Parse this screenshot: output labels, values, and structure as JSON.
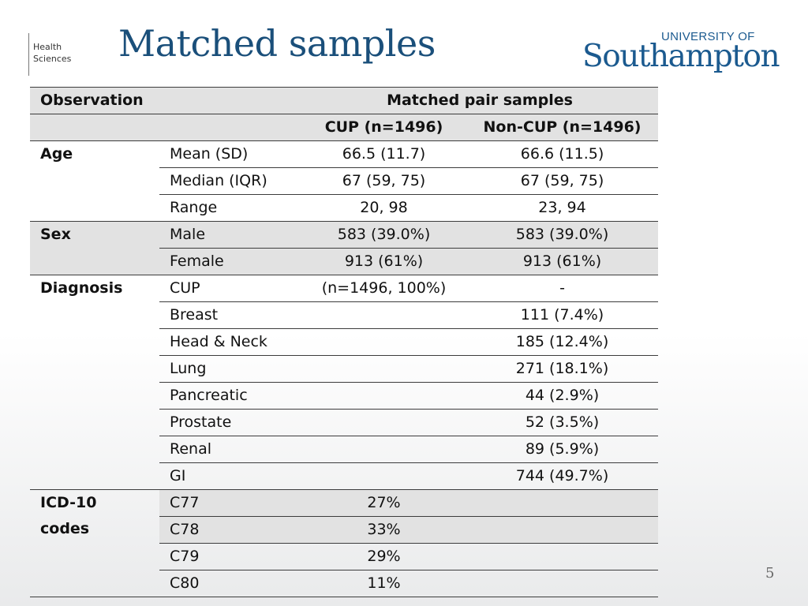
{
  "branding": {
    "line1": "Health",
    "line2": "Sciences",
    "university_top": "UNIVERSITY OF",
    "university_main": "Southampton"
  },
  "title": "Matched samples",
  "page_number": "5",
  "table": {
    "header": {
      "observation": "Observation",
      "group_label": "Matched pair samples",
      "col_cup": "CUP (n=1496)",
      "col_noncup": "Non-CUP (n=1496)"
    },
    "groups": {
      "age": "Age",
      "sex": "Sex",
      "diagnosis": "Diagnosis",
      "icd_line1": "ICD-10",
      "icd_line2": "codes"
    },
    "rows": [
      {
        "label": "Mean (SD)",
        "cup": "66.5 (11.7)",
        "noncup": "66.6 (11.5)"
      },
      {
        "label": "Median (IQR)",
        "cup": "67 (59, 75)",
        "noncup": "67 (59, 75)"
      },
      {
        "label": "Range",
        "cup": "20, 98",
        "noncup": "23, 94"
      },
      {
        "label": "Male",
        "cup": "583 (39.0%)",
        "noncup": "583 (39.0%)"
      },
      {
        "label": "Female",
        "cup": "913 (61%)",
        "noncup": "913 (61%)"
      },
      {
        "label": "CUP",
        "cup": "(n=1496, 100%)",
        "noncup": "-"
      },
      {
        "label": "Breast",
        "cup": "",
        "noncup": "111 (7.4%)"
      },
      {
        "label": "Head & Neck",
        "cup": "",
        "noncup": "185 (12.4%)"
      },
      {
        "label": "Lung",
        "cup": "",
        "noncup": "271 (18.1%)"
      },
      {
        "label": "Pancreatic",
        "cup": "",
        "noncup": "44 (2.9%)"
      },
      {
        "label": "Prostate",
        "cup": "",
        "noncup": "52 (3.5%)"
      },
      {
        "label": "Renal",
        "cup": "",
        "noncup": "89 (5.9%)"
      },
      {
        "label": "GI",
        "cup": "",
        "noncup": "744 (49.7%)"
      },
      {
        "label": "C77",
        "cup": "27%",
        "noncup": ""
      },
      {
        "label": "C78",
        "cup": "33%",
        "noncup": ""
      },
      {
        "label": "C79",
        "cup": "29%",
        "noncup": ""
      },
      {
        "label": "C80",
        "cup": "11%",
        "noncup": ""
      }
    ]
  }
}
